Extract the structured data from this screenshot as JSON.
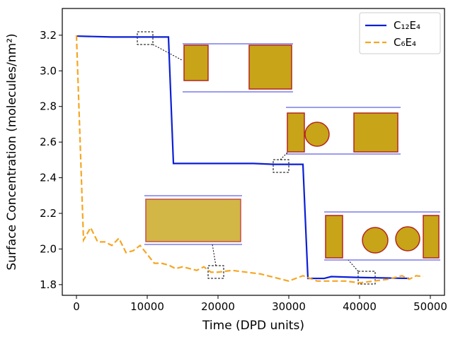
{
  "chart_data": {
    "type": "line",
    "xlabel": "Time (DPD units)",
    "ylabel": "Surface Concentration (molecules/nm²)",
    "xlim": [
      -2000,
      52000
    ],
    "ylim": [
      1.74,
      3.35
    ],
    "xticks": [
      0,
      10000,
      20000,
      30000,
      40000,
      50000
    ],
    "yticks": [
      1.8,
      {
        "value": 2,
        "label": "2.0"
      },
      2.2,
      2.4,
      2.6,
      2.8,
      {
        "value": 3,
        "label": "3.0"
      },
      3.2
    ],
    "legend": "upper right",
    "series": [
      {
        "name": "C₁₂E₄",
        "color": "#0a1fd6",
        "dash": "solid",
        "x": [
          0,
          5000,
          10000,
          13000,
          13700,
          20000,
          25000,
          28000,
          32000,
          32700,
          35000,
          36000,
          40000,
          47000
        ],
        "values": [
          3.195,
          3.19,
          3.19,
          3.19,
          2.48,
          2.48,
          2.48,
          2.475,
          2.475,
          1.835,
          1.835,
          1.845,
          1.84,
          1.835
        ]
      },
      {
        "name": "C₆E₄",
        "color": "#f5a623",
        "dash": "dashed",
        "x": [
          0,
          1000,
          2000,
          3000,
          4000,
          5000,
          6000,
          7000,
          8000,
          9000,
          10000,
          11000,
          12000,
          13000,
          14000,
          15000,
          16000,
          17000,
          18000,
          19000,
          20000,
          22000,
          24000,
          26000,
          28000,
          30000,
          32000,
          34000,
          36000,
          38000,
          40000,
          42000,
          44000,
          46000,
          47000,
          48000,
          49000
        ],
        "values": [
          3.2,
          2.05,
          2.12,
          2.04,
          2.04,
          2.02,
          2.06,
          1.98,
          1.99,
          2.02,
          1.97,
          1.92,
          1.92,
          1.91,
          1.89,
          1.9,
          1.89,
          1.88,
          1.9,
          1.87,
          1.87,
          1.88,
          1.87,
          1.86,
          1.84,
          1.82,
          1.85,
          1.82,
          1.82,
          1.82,
          1.81,
          1.82,
          1.83,
          1.85,
          1.83,
          1.85,
          1.845
        ]
      }
    ]
  }
}
